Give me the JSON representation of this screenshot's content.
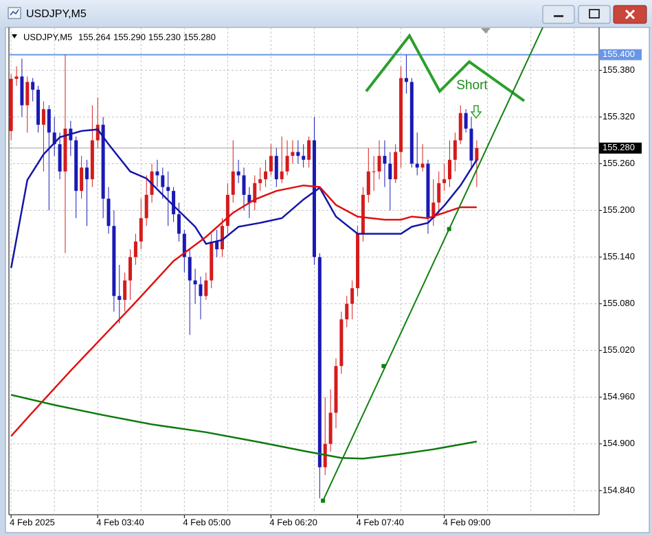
{
  "window": {
    "title": "USDJPY,M5"
  },
  "chart_data": {
    "type": "candlestick",
    "title": "USDJPY,M5",
    "header_quote": [
      "155.264",
      "155.290",
      "155.230",
      "155.280"
    ],
    "bull_color": "#d41c1c",
    "bear_color": "#1a1ab4",
    "xlim": [
      -0.4,
      108.6
    ],
    "ylim": [
      154.809,
      155.435
    ],
    "grid": true,
    "xticks": [
      {
        "value": 0,
        "label": "4 Feb 2025"
      },
      {
        "value": 16,
        "label": "4 Feb 03:40"
      },
      {
        "value": 32,
        "label": "4 Feb 05:00"
      },
      {
        "value": 48,
        "label": "4 Feb 06:20"
      },
      {
        "value": 64,
        "label": "4 Feb 07:40"
      },
      {
        "value": 80,
        "label": "4 Feb 09:00"
      }
    ],
    "x_minor_grid": [
      8,
      24,
      40,
      56,
      72,
      88,
      96,
      104
    ],
    "yticks": [
      {
        "value": 155.38,
        "label": "155.380"
      },
      {
        "value": 155.32,
        "label": "155.320"
      },
      {
        "value": 155.26,
        "label": "155.260"
      },
      {
        "value": 155.2,
        "label": "155.200"
      },
      {
        "value": 155.14,
        "label": "155.140"
      },
      {
        "value": 155.08,
        "label": "155.080"
      },
      {
        "value": 155.02,
        "label": "155.020"
      },
      {
        "value": 154.96,
        "label": "154.960"
      },
      {
        "value": 154.9,
        "label": "154.900"
      },
      {
        "value": 154.84,
        "label": "154.840"
      }
    ],
    "open": [
      155.302,
      155.369,
      155.372,
      155.335,
      155.365,
      155.355,
      155.31,
      155.33,
      155.3,
      155.285,
      155.25,
      155.305,
      155.29,
      155.225,
      155.255,
      155.24,
      155.29,
      155.31,
      155.215,
      155.18,
      155.09,
      155.085,
      155.11,
      155.14,
      155.16,
      155.19,
      155.22,
      155.25,
      155.245,
      155.23,
      155.225,
      155.195,
      155.17,
      155.14,
      155.11,
      155.105,
      155.09,
      155.11,
      155.16,
      155.15,
      155.18,
      155.22,
      155.25,
      155.245,
      155.22,
      155.21,
      155.235,
      155.24,
      155.25,
      155.27,
      155.24,
      155.25,
      155.27,
      155.275,
      155.27,
      155.265,
      155.29,
      155.14,
      154.87,
      154.9,
      154.94,
      155.0,
      155.06,
      155.08,
      155.1,
      155.17,
      155.22,
      155.25,
      155.25,
      155.27,
      155.26,
      155.24,
      155.275,
      155.37,
      155.365,
      155.26,
      155.255,
      155.26,
      155.19,
      155.21,
      155.235,
      155.24,
      155.265,
      155.29,
      155.325,
      155.305,
      155.264
    ],
    "high": [
      155.375,
      155.385,
      155.395,
      155.372,
      155.37,
      155.36,
      155.34,
      155.335,
      155.32,
      155.3,
      155.4,
      155.315,
      155.295,
      155.27,
      155.265,
      155.335,
      155.345,
      155.32,
      155.23,
      155.2,
      155.13,
      155.12,
      155.15,
      155.17,
      155.215,
      155.245,
      155.26,
      155.265,
      155.255,
      155.25,
      155.23,
      155.21,
      155.175,
      155.15,
      155.125,
      155.115,
      155.12,
      155.17,
      155.175,
      155.19,
      155.235,
      155.29,
      155.265,
      155.255,
      155.23,
      155.245,
      155.255,
      155.265,
      155.285,
      155.28,
      155.295,
      155.29,
      155.29,
      155.29,
      155.285,
      155.295,
      155.32,
      155.145,
      154.96,
      154.97,
      155.01,
      155.07,
      155.09,
      155.11,
      155.18,
      155.23,
      155.28,
      155.27,
      155.29,
      155.29,
      155.275,
      155.285,
      155.385,
      155.4,
      155.37,
      155.3,
      155.285,
      155.265,
      155.24,
      155.25,
      155.26,
      155.29,
      155.3,
      155.335,
      155.33,
      155.32,
      155.29
    ],
    "low": [
      155.29,
      155.36,
      155.32,
      155.3,
      155.34,
      155.3,
      155.25,
      155.2,
      155.27,
      155.24,
      155.145,
      155.27,
      155.19,
      155.215,
      155.18,
      155.23,
      155.28,
      155.19,
      155.17,
      155.07,
      155.055,
      155.07,
      155.085,
      155.13,
      155.15,
      155.18,
      155.21,
      155.23,
      155.215,
      155.18,
      155.185,
      155.16,
      155.12,
      155.04,
      155.08,
      155.06,
      155.085,
      155.1,
      155.14,
      155.14,
      155.17,
      155.21,
      155.235,
      155.2,
      155.19,
      155.2,
      155.225,
      155.23,
      155.245,
      155.23,
      155.235,
      155.245,
      155.26,
      155.26,
      155.255,
      155.255,
      155.13,
      154.83,
      154.86,
      154.89,
      154.92,
      154.99,
      155.05,
      155.06,
      155.09,
      155.16,
      155.21,
      155.225,
      155.24,
      155.23,
      155.2,
      155.235,
      155.255,
      155.35,
      155.255,
      155.245,
      155.25,
      155.17,
      155.18,
      155.195,
      155.225,
      155.23,
      155.25,
      155.285,
      155.3,
      155.255,
      155.23
    ],
    "close": [
      155.369,
      155.372,
      155.335,
      155.365,
      155.355,
      155.31,
      155.33,
      155.3,
      155.285,
      155.25,
      155.305,
      155.29,
      155.225,
      155.255,
      155.24,
      155.29,
      155.31,
      155.215,
      155.18,
      155.09,
      155.085,
      155.11,
      155.14,
      155.16,
      155.19,
      155.22,
      155.25,
      155.245,
      155.23,
      155.225,
      155.195,
      155.17,
      155.14,
      155.11,
      155.105,
      155.09,
      155.11,
      155.16,
      155.15,
      155.18,
      155.22,
      155.25,
      155.245,
      155.22,
      155.21,
      155.235,
      155.24,
      155.25,
      155.27,
      155.24,
      155.25,
      155.27,
      155.275,
      155.27,
      155.265,
      155.29,
      155.14,
      154.87,
      154.9,
      154.94,
      155.0,
      155.06,
      155.08,
      155.1,
      155.17,
      155.22,
      155.25,
      155.25,
      155.27,
      155.26,
      155.24,
      155.275,
      155.37,
      155.365,
      155.26,
      155.255,
      155.26,
      155.19,
      155.21,
      155.235,
      155.24,
      155.265,
      155.29,
      155.325,
      155.305,
      155.264,
      155.28
    ],
    "lines": [
      {
        "color": "#1414a8",
        "x": [
          0,
          3,
          6,
          9,
          13,
          16,
          18,
          22,
          25,
          30,
          34,
          36,
          39,
          42,
          46,
          50,
          54,
          57,
          60,
          64,
          69,
          72,
          74,
          77,
          80,
          83,
          86
        ],
        "values": [
          155.126,
          155.239,
          155.272,
          155.294,
          155.302,
          155.304,
          155.285,
          155.25,
          155.241,
          155.206,
          155.179,
          155.157,
          155.162,
          155.179,
          155.184,
          155.19,
          155.214,
          155.229,
          155.192,
          155.17,
          155.17,
          155.17,
          155.179,
          155.184,
          155.206,
          155.232,
          155.265
        ]
      },
      {
        "color": "#e01010",
        "x": [
          0,
          4,
          11,
          17,
          23,
          30,
          36,
          41,
          45,
          49,
          54,
          57,
          60,
          64,
          69,
          72,
          74,
          77,
          80,
          83,
          86
        ],
        "values": [
          154.91,
          154.941,
          154.994,
          155.038,
          155.082,
          155.135,
          155.166,
          155.197,
          155.214,
          155.225,
          155.232,
          155.23,
          155.207,
          155.192,
          155.188,
          155.188,
          155.192,
          155.19,
          155.197,
          155.204,
          155.204
        ]
      },
      {
        "color": "#0d7a0d",
        "x": [
          0,
          8,
          17,
          26,
          36,
          46,
          54,
          61,
          65,
          72,
          78,
          86
        ],
        "values": [
          154.963,
          154.95,
          154.937,
          154.925,
          154.915,
          154.902,
          154.891,
          154.882,
          154.881,
          154.887,
          154.893,
          154.903
        ]
      }
    ],
    "trendline": {
      "color": "#108010",
      "x": [
        57.6,
        68.8,
        80.9
      ],
      "values": [
        154.827,
        155.0,
        155.176
      ]
    },
    "levels": [
      {
        "value": 155.4,
        "label": "155.400",
        "color": "#6a96e6"
      }
    ],
    "bid": {
      "value": 155.28,
      "label": "155.280",
      "color": "#000000"
    },
    "annotation": "Short"
  }
}
